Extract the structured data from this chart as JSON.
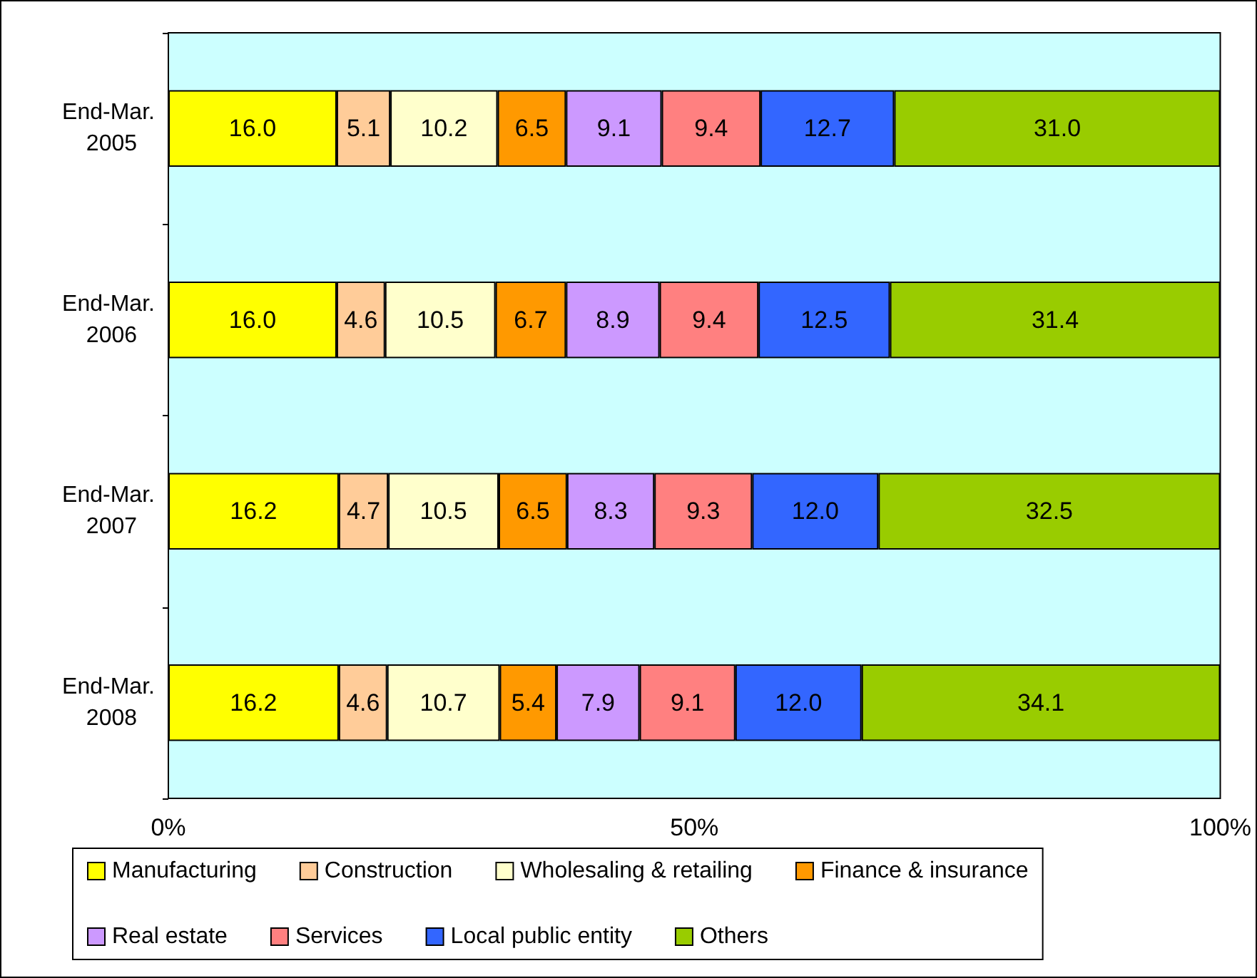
{
  "chart_data": {
    "type": "bar",
    "orientation": "horizontal",
    "stacked": true,
    "categories": [
      "End-Mar. 2005",
      "End-Mar. 2006",
      "End-Mar. 2007",
      "End-Mar. 2008"
    ],
    "series": [
      {
        "name": "Manufacturing",
        "color": "#ffff00",
        "values": [
          16.0,
          16.0,
          16.2,
          16.2
        ],
        "value_labels": [
          "16.0",
          "16.0",
          "16.2",
          "16.2"
        ]
      },
      {
        "name": "Construction",
        "color": "#ffcc99",
        "values": [
          5.1,
          4.6,
          4.7,
          4.6
        ],
        "value_labels": [
          "5.1",
          "4.6",
          "4.7",
          "4.6"
        ]
      },
      {
        "name": "Wholesaling & retailing",
        "color": "#ffffcc",
        "values": [
          10.2,
          10.5,
          10.5,
          10.7
        ],
        "value_labels": [
          "10.2",
          "10.5",
          "10.5",
          "10.7"
        ]
      },
      {
        "name": "Finance & insurance",
        "color": "#ff9900",
        "values": [
          6.5,
          6.7,
          6.5,
          5.4
        ],
        "value_labels": [
          "6.5",
          "6.7",
          "6.5",
          "5.4"
        ]
      },
      {
        "name": "Real estate",
        "color": "#cc99ff",
        "values": [
          9.1,
          8.9,
          8.3,
          7.9
        ],
        "value_labels": [
          "9.1",
          "8.9",
          "8.3",
          "7.9"
        ]
      },
      {
        "name": "Services",
        "color": "#ff8080",
        "values": [
          9.4,
          9.4,
          9.3,
          9.1
        ],
        "value_labels": [
          "9.4",
          "9.4",
          "9.3",
          "9.1"
        ]
      },
      {
        "name": "Local public entity",
        "color": "#3366ff",
        "values": [
          12.7,
          12.5,
          12.0,
          12.0
        ],
        "value_labels": [
          "12.7",
          "12.5",
          "12.0",
          "12.0"
        ]
      },
      {
        "name": "Others",
        "color": "#99cc00",
        "values": [
          31.0,
          31.4,
          32.5,
          34.1
        ],
        "value_labels": [
          "31.0",
          "31.4",
          "32.5",
          "34.1"
        ]
      }
    ],
    "xlim": [
      0,
      100
    ],
    "xticks": [
      {
        "value": 0,
        "label": "0%"
      },
      {
        "value": 50,
        "label": "50%"
      },
      {
        "value": 100,
        "label": "100%"
      }
    ],
    "grid": false,
    "legend": "bottom"
  }
}
